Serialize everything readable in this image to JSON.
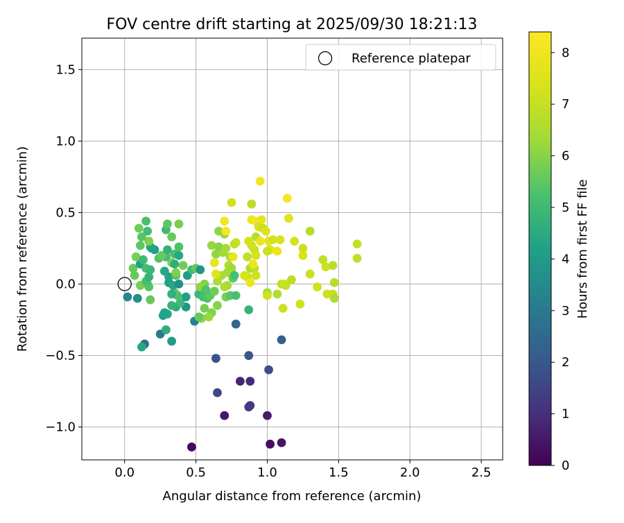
{
  "chart_data": {
    "type": "scatter",
    "title": "FOV centre drift starting at 2025/09/30 18:21:13",
    "xlabel": "Angular distance from reference (arcmin)",
    "ylabel": "Rotation from reference (arcmin)",
    "xlim": [
      -0.3,
      2.65
    ],
    "ylim": [
      -1.23,
      1.72
    ],
    "xticks": [
      "0.0",
      "0.5",
      "1.0",
      "1.5",
      "2.0",
      "2.5"
    ],
    "xtick_values": [
      0,
      0.5,
      1.0,
      1.5,
      2.0,
      2.5
    ],
    "yticks": [
      "−1.0",
      "−0.5",
      "0.0",
      "0.5",
      "1.0",
      "1.5"
    ],
    "ytick_values": [
      -1.0,
      -0.5,
      0.0,
      0.5,
      1.0,
      1.5
    ],
    "grid": true,
    "legend": {
      "location": "upper right",
      "label": "Reference platepar"
    },
    "reference_point": {
      "x": 0.0,
      "y": 0.0
    },
    "colorbar": {
      "label": "Hours from first FF file",
      "range": [
        0,
        8.4
      ],
      "ticks": [
        "0",
        "1",
        "2",
        "3",
        "4",
        "5",
        "6",
        "7",
        "8"
      ],
      "tick_values": [
        0,
        1,
        2,
        3,
        4,
        5,
        6,
        7,
        8
      ],
      "colormap": "viridis"
    },
    "points": [
      {
        "x": 0.47,
        "y": -1.14,
        "h": 0.2
      },
      {
        "x": 1.02,
        "y": -1.12,
        "h": 0.3
      },
      {
        "x": 1.1,
        "y": -1.11,
        "h": 0.4
      },
      {
        "x": 0.7,
        "y": -0.92,
        "h": 0.5
      },
      {
        "x": 1.0,
        "y": -0.92,
        "h": 0.6
      },
      {
        "x": 0.88,
        "y": -0.85,
        "h": 1.2
      },
      {
        "x": 0.87,
        "y": -0.86,
        "h": 1.3
      },
      {
        "x": 0.81,
        "y": -0.68,
        "h": 0.8
      },
      {
        "x": 0.88,
        "y": -0.68,
        "h": 0.9
      },
      {
        "x": 0.65,
        "y": -0.76,
        "h": 1.6
      },
      {
        "x": 1.01,
        "y": -0.6,
        "h": 1.8
      },
      {
        "x": 0.64,
        "y": -0.52,
        "h": 1.9
      },
      {
        "x": 0.87,
        "y": -0.5,
        "h": 2.0
      },
      {
        "x": 1.1,
        "y": -0.39,
        "h": 2.2
      },
      {
        "x": 0.78,
        "y": -0.28,
        "h": 2.4
      },
      {
        "x": 0.14,
        "y": -0.42,
        "h": 2.6
      },
      {
        "x": 0.12,
        "y": -0.44,
        "h": 4.4
      },
      {
        "x": 0.25,
        "y": -0.35,
        "h": 3.0
      },
      {
        "x": 0.33,
        "y": -0.4,
        "h": 4.0
      },
      {
        "x": 0.29,
        "y": -0.32,
        "h": 4.6
      },
      {
        "x": 0.49,
        "y": -0.26,
        "h": 3.2
      },
      {
        "x": 0.27,
        "y": -0.22,
        "h": 4.2
      },
      {
        "x": 0.3,
        "y": -0.21,
        "h": 4.4
      },
      {
        "x": 0.28,
        "y": -0.2,
        "h": 4.3
      },
      {
        "x": 0.36,
        "y": -0.16,
        "h": 4.5
      },
      {
        "x": 0.33,
        "y": -0.15,
        "h": 4.8
      },
      {
        "x": 0.43,
        "y": -0.16,
        "h": 3.8
      },
      {
        "x": 0.39,
        "y": -0.13,
        "h": 5.0
      },
      {
        "x": 0.02,
        "y": -0.09,
        "h": 3.4
      },
      {
        "x": 0.09,
        "y": -0.1,
        "h": 3.6
      },
      {
        "x": 0.18,
        "y": -0.11,
        "h": 5.6
      },
      {
        "x": 0.43,
        "y": -0.09,
        "h": 4.1
      },
      {
        "x": 0.37,
        "y": -0.08,
        "h": 5.2
      },
      {
        "x": 0.35,
        "y": -0.06,
        "h": 5.4
      },
      {
        "x": 0.33,
        "y": -0.07,
        "h": 4.7
      },
      {
        "x": 0.52,
        "y": -0.07,
        "h": 4.9
      },
      {
        "x": 0.55,
        "y": -0.09,
        "h": 5.1
      },
      {
        "x": 0.58,
        "y": -0.1,
        "h": 5.3
      },
      {
        "x": 0.6,
        "y": -0.08,
        "h": 5.5
      },
      {
        "x": 0.63,
        "y": -0.05,
        "h": 5.7
      },
      {
        "x": 0.56,
        "y": -0.17,
        "h": 5.8
      },
      {
        "x": 0.61,
        "y": -0.2,
        "h": 5.9
      },
      {
        "x": 0.65,
        "y": -0.15,
        "h": 6.0
      },
      {
        "x": 0.59,
        "y": -0.23,
        "h": 6.2
      },
      {
        "x": 0.54,
        "y": -0.24,
        "h": 6.1
      },
      {
        "x": 0.52,
        "y": -0.23,
        "h": 5.6
      },
      {
        "x": 0.71,
        "y": -0.09,
        "h": 5.8
      },
      {
        "x": 0.74,
        "y": -0.08,
        "h": 5.4
      },
      {
        "x": 0.78,
        "y": -0.08,
        "h": 5.2
      },
      {
        "x": 0.87,
        "y": -0.18,
        "h": 4.8
      },
      {
        "x": 0.72,
        "y": -0.01,
        "h": 6.4
      },
      {
        "x": 0.7,
        "y": -0.02,
        "h": 6.6
      },
      {
        "x": 0.65,
        "y": 0.02,
        "h": 6.5
      },
      {
        "x": 0.56,
        "y": 0.0,
        "h": 5.9
      },
      {
        "x": 0.53,
        "y": -0.02,
        "h": 6.1
      },
      {
        "x": 0.57,
        "y": -0.04,
        "h": 5.3
      },
      {
        "x": 0.31,
        "y": 0.01,
        "h": 4.2
      },
      {
        "x": 0.34,
        "y": -0.01,
        "h": 4.4
      },
      {
        "x": 0.38,
        "y": 0.0,
        "h": 3.6
      },
      {
        "x": 0.16,
        "y": 0.0,
        "h": 4.6
      },
      {
        "x": 0.11,
        "y": -0.01,
        "h": 5.8
      },
      {
        "x": 0.17,
        "y": -0.02,
        "h": 5.4
      },
      {
        "x": 0.07,
        "y": 0.06,
        "h": 5.6
      },
      {
        "x": 0.15,
        "y": 0.02,
        "h": 5.2
      },
      {
        "x": 0.17,
        "y": 0.05,
        "h": 4.8
      },
      {
        "x": 0.31,
        "y": 0.05,
        "h": 4.3
      },
      {
        "x": 0.36,
        "y": 0.06,
        "h": 5.4
      },
      {
        "x": 0.44,
        "y": 0.06,
        "h": 4.0
      },
      {
        "x": 0.47,
        "y": 0.1,
        "h": 5.0
      },
      {
        "x": 0.5,
        "y": 0.11,
        "h": 5.6
      },
      {
        "x": 0.53,
        "y": 0.1,
        "h": 3.8
      },
      {
        "x": 0.28,
        "y": 0.09,
        "h": 4.4
      },
      {
        "x": 0.36,
        "y": 0.08,
        "h": 5.9
      },
      {
        "x": 0.06,
        "y": 0.11,
        "h": 5.6
      },
      {
        "x": 0.11,
        "y": 0.14,
        "h": 4.2
      },
      {
        "x": 0.15,
        "y": 0.11,
        "h": 5.2
      },
      {
        "x": 0.18,
        "y": 0.1,
        "h": 4.9
      },
      {
        "x": 0.41,
        "y": 0.13,
        "h": 5.7
      },
      {
        "x": 0.33,
        "y": 0.15,
        "h": 5.9
      },
      {
        "x": 0.35,
        "y": 0.14,
        "h": 4.6
      },
      {
        "x": 0.08,
        "y": 0.19,
        "h": 5.8
      },
      {
        "x": 0.13,
        "y": 0.17,
        "h": 5.0
      },
      {
        "x": 0.24,
        "y": 0.18,
        "h": 5.3
      },
      {
        "x": 0.29,
        "y": 0.19,
        "h": 5.1
      },
      {
        "x": 0.26,
        "y": 0.2,
        "h": 5.6
      },
      {
        "x": 0.35,
        "y": 0.21,
        "h": 5.2
      },
      {
        "x": 0.38,
        "y": 0.2,
        "h": 4.4
      },
      {
        "x": 0.21,
        "y": 0.24,
        "h": 4.0
      },
      {
        "x": 0.18,
        "y": 0.26,
        "h": 4.6
      },
      {
        "x": 0.19,
        "y": 0.25,
        "h": 4.3
      },
      {
        "x": 0.3,
        "y": 0.24,
        "h": 4.8
      },
      {
        "x": 0.38,
        "y": 0.26,
        "h": 5.3
      },
      {
        "x": 0.11,
        "y": 0.27,
        "h": 5.5
      },
      {
        "x": 0.17,
        "y": 0.3,
        "h": 5.9
      },
      {
        "x": 0.12,
        "y": 0.33,
        "h": 5.4
      },
      {
        "x": 0.1,
        "y": 0.39,
        "h": 5.7
      },
      {
        "x": 0.16,
        "y": 0.37,
        "h": 5.1
      },
      {
        "x": 0.33,
        "y": 0.33,
        "h": 5.6
      },
      {
        "x": 0.29,
        "y": 0.38,
        "h": 5.0
      },
      {
        "x": 0.3,
        "y": 0.42,
        "h": 5.5
      },
      {
        "x": 0.38,
        "y": 0.42,
        "h": 5.8
      },
      {
        "x": 0.15,
        "y": 0.44,
        "h": 5.2
      },
      {
        "x": 0.61,
        "y": 0.27,
        "h": 6.2
      },
      {
        "x": 0.66,
        "y": 0.26,
        "h": 6.0
      },
      {
        "x": 0.64,
        "y": 0.21,
        "h": 6.1
      },
      {
        "x": 0.69,
        "y": 0.22,
        "h": 6.3
      },
      {
        "x": 0.66,
        "y": 0.37,
        "h": 6.1
      },
      {
        "x": 0.7,
        "y": 0.35,
        "h": 6.2
      },
      {
        "x": 0.71,
        "y": 0.25,
        "h": 6.4
      },
      {
        "x": 0.74,
        "y": 0.19,
        "h": 6.5
      },
      {
        "x": 0.73,
        "y": 0.13,
        "h": 6.6
      },
      {
        "x": 0.75,
        "y": 0.11,
        "h": 6.3
      },
      {
        "x": 0.72,
        "y": 0.08,
        "h": 6.4
      },
      {
        "x": 0.68,
        "y": 0.06,
        "h": 6.5
      },
      {
        "x": 0.64,
        "y": 0.07,
        "h": 7.6
      },
      {
        "x": 0.63,
        "y": 0.15,
        "h": 7.8
      },
      {
        "x": 0.76,
        "y": 0.04,
        "h": 5.6
      },
      {
        "x": 0.77,
        "y": 0.06,
        "h": 5.2
      },
      {
        "x": 0.77,
        "y": 0.28,
        "h": 6.8
      },
      {
        "x": 0.78,
        "y": 0.29,
        "h": 7.0
      },
      {
        "x": 0.76,
        "y": 0.19,
        "h": 7.9
      },
      {
        "x": 0.7,
        "y": 0.44,
        "h": 8.1
      },
      {
        "x": 0.71,
        "y": 0.37,
        "h": 8.2
      },
      {
        "x": 0.75,
        "y": 0.57,
        "h": 7.2
      },
      {
        "x": 0.89,
        "y": 0.56,
        "h": 6.8
      },
      {
        "x": 0.95,
        "y": 0.72,
        "h": 8.0
      },
      {
        "x": 1.14,
        "y": 0.6,
        "h": 8.2
      },
      {
        "x": 1.15,
        "y": 0.46,
        "h": 7.6
      },
      {
        "x": 0.89,
        "y": 0.45,
        "h": 7.9
      },
      {
        "x": 0.92,
        "y": 0.44,
        "h": 8.1
      },
      {
        "x": 0.96,
        "y": 0.45,
        "h": 7.8
      },
      {
        "x": 0.94,
        "y": 0.4,
        "h": 7.4
      },
      {
        "x": 0.97,
        "y": 0.39,
        "h": 7.0
      },
      {
        "x": 0.92,
        "y": 0.33,
        "h": 6.7
      },
      {
        "x": 0.99,
        "y": 0.37,
        "h": 7.5
      },
      {
        "x": 1.01,
        "y": 0.3,
        "h": 7.7
      },
      {
        "x": 1.04,
        "y": 0.31,
        "h": 7.3
      },
      {
        "x": 1.02,
        "y": 0.24,
        "h": 7.6
      },
      {
        "x": 1.0,
        "y": 0.23,
        "h": 7.1
      },
      {
        "x": 1.07,
        "y": 0.23,
        "h": 7.9
      },
      {
        "x": 1.09,
        "y": 0.31,
        "h": 7.4
      },
      {
        "x": 0.95,
        "y": 0.3,
        "h": 7.8
      },
      {
        "x": 0.91,
        "y": 0.24,
        "h": 7.0
      },
      {
        "x": 0.89,
        "y": 0.27,
        "h": 7.2
      },
      {
        "x": 0.87,
        "y": 0.3,
        "h": 7.3
      },
      {
        "x": 0.92,
        "y": 0.2,
        "h": 7.4
      },
      {
        "x": 0.86,
        "y": 0.19,
        "h": 6.9
      },
      {
        "x": 0.88,
        "y": 0.11,
        "h": 6.6
      },
      {
        "x": 0.91,
        "y": 0.11,
        "h": 6.9
      },
      {
        "x": 0.9,
        "y": 0.14,
        "h": 7.9
      },
      {
        "x": 0.92,
        "y": 0.06,
        "h": 7.2
      },
      {
        "x": 0.86,
        "y": 0.05,
        "h": 7.0
      },
      {
        "x": 0.84,
        "y": 0.06,
        "h": 7.4
      },
      {
        "x": 0.88,
        "y": 0.01,
        "h": 7.9
      },
      {
        "x": 1.0,
        "y": -0.06,
        "h": 6.3
      },
      {
        "x": 1.0,
        "y": -0.08,
        "h": 7.2
      },
      {
        "x": 1.07,
        "y": -0.07,
        "h": 6.6
      },
      {
        "x": 1.1,
        "y": 0.0,
        "h": 6.8
      },
      {
        "x": 1.12,
        "y": 0.0,
        "h": 7.3
      },
      {
        "x": 1.13,
        "y": -0.01,
        "h": 7.0
      },
      {
        "x": 1.11,
        "y": -0.17,
        "h": 7.1
      },
      {
        "x": 1.17,
        "y": 0.03,
        "h": 6.8
      },
      {
        "x": 1.19,
        "y": 0.3,
        "h": 7.3
      },
      {
        "x": 1.23,
        "y": -0.14,
        "h": 7.2
      },
      {
        "x": 1.25,
        "y": 0.2,
        "h": 7.4
      },
      {
        "x": 1.25,
        "y": 0.25,
        "h": 7.1
      },
      {
        "x": 1.3,
        "y": 0.37,
        "h": 6.7
      },
      {
        "x": 1.3,
        "y": 0.07,
        "h": 7.1
      },
      {
        "x": 1.35,
        "y": -0.02,
        "h": 7.2
      },
      {
        "x": 1.39,
        "y": 0.17,
        "h": 6.9
      },
      {
        "x": 1.41,
        "y": 0.12,
        "h": 7.2
      },
      {
        "x": 1.42,
        "y": -0.07,
        "h": 7.1
      },
      {
        "x": 1.46,
        "y": 0.13,
        "h": 6.8
      },
      {
        "x": 1.46,
        "y": -0.07,
        "h": 7.0
      },
      {
        "x": 1.47,
        "y": -0.1,
        "h": 6.5
      },
      {
        "x": 1.47,
        "y": 0.01,
        "h": 6.7
      },
      {
        "x": 1.63,
        "y": 0.28,
        "h": 7.0
      },
      {
        "x": 1.63,
        "y": 0.18,
        "h": 6.9
      }
    ]
  }
}
